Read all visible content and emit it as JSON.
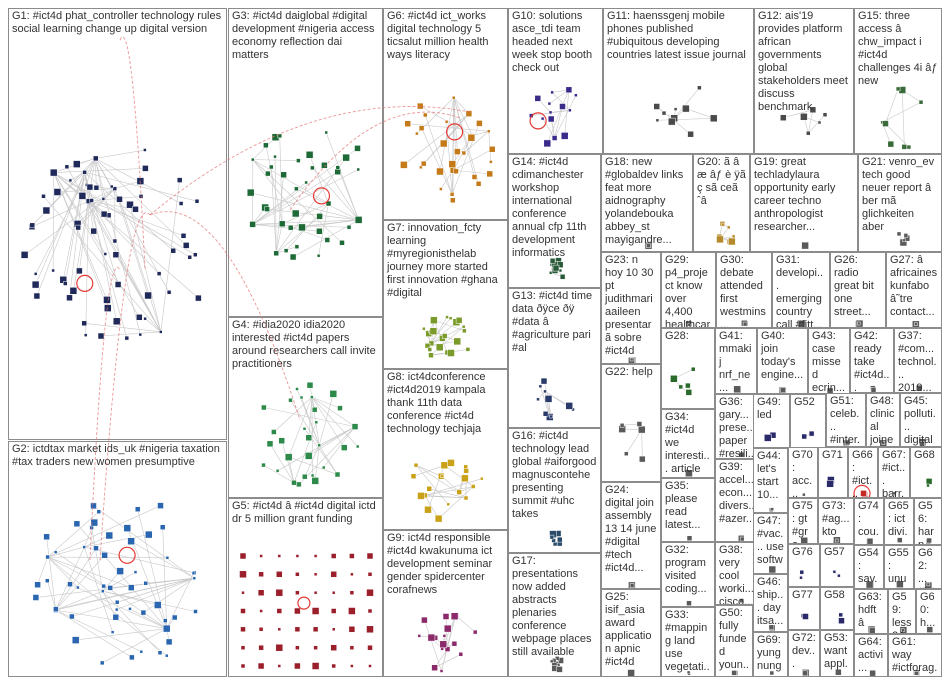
{
  "groups": [
    {
      "id": "G1",
      "label": "G1: #ict4d phat_controller technology rules social learning change up digital version",
      "color": "#1f2a5a"
    },
    {
      "id": "G2",
      "label": "G2: ictdtax market ids_uk #nigeria taxation #tax traders new women presumptive",
      "color": "#2a66b0"
    },
    {
      "id": "G3",
      "label": "G3: #ict4d daiglobal #digital development #nigeria access economy reflection dai matters",
      "color": "#1d6a36"
    },
    {
      "id": "G4",
      "label": "G4: #idia2020 idia2020 interested #ict4d papers around researchers call invite practitioners",
      "color": "#2e8a4a"
    },
    {
      "id": "G5",
      "label": "G5: #ict4d â #ict4d digital ictd dr 5 million grant funding",
      "color": "#9a1f2a"
    },
    {
      "id": "G6",
      "label": "G6: #ict4d ict_works digital technology 5 ticsalut million health ways literacy",
      "color": "#c47a18"
    },
    {
      "id": "G7",
      "label": "G7: innovation_fcty learning #myregionisthelab journey more started first innovation #ghana #digital",
      "color": "#7a9a2a"
    },
    {
      "id": "G8",
      "label": "G8: ict4dconference #ict4d2019 kampala thank 11th data conference #ict4d technology techjaja",
      "color": "#c9a21a"
    },
    {
      "id": "G9",
      "label": "G9: ict4d responsible #ict4d kwakunuma ict development seminar gender spidercenter corafnews",
      "color": "#8a2a6a"
    },
    {
      "id": "G10",
      "label": "G10: solutions asce_tdi team headed next week stop booth check out",
      "color": "#3a2a8a"
    },
    {
      "id": "G11",
      "label": "G11: haenssgenj mobile phones published #ubiquitous developing countries latest issue journal",
      "color": "#4a4a4a"
    },
    {
      "id": "G12",
      "label": "G12: ais'19 provides platform african governments global stakeholders meet discuss benchmark",
      "color": "#4a4a4a"
    },
    {
      "id": "G13",
      "label": "G13: #ict4d time data ðÿcе ðÿ #data â #agriculture pari #al",
      "color": "#2a3a6a"
    },
    {
      "id": "G14",
      "label": "G14: #ict4d cdimanchester workshop international conference annual cfp 11th development informatics",
      "color": "#2a5a3a"
    },
    {
      "id": "G15",
      "label": "G15: three access â chw_impact i #ict4d challenges 4i âƒ new",
      "color": "#3a6a3a"
    },
    {
      "id": "G16",
      "label": "G16: #ict4d technology lead global #aiforgood magnuscontehe presenting summit #uhc takes",
      "color": "#2a4a6a"
    },
    {
      "id": "G17",
      "label": "G17: presentations now added abstracts plenaries conference webpage places still available",
      "color": "#5a5a5a"
    },
    {
      "id": "G18",
      "label": "G18: new #globaldev links feat more aidnography yolandebouka abbey_st mayigandre...",
      "color": "#5a5a5a"
    },
    {
      "id": "G19",
      "label": "G19: great techladylaura opportunity early career techno anthropologist researcher...",
      "color": "#5a5a5a"
    },
    {
      "id": "G20",
      "label": "G20: ã â æ âƒ è ÿã ç sã ceã ˆâ",
      "color": "#b58a2a"
    },
    {
      "id": "G21",
      "label": "G21: venro_ev tech good neuer report â ber mã glichkeiten aber",
      "color": "#5a5a5a"
    },
    {
      "id": "G22",
      "label": "G22: help",
      "color": "#5a5a5a"
    },
    {
      "id": "G23",
      "label": "G23: n hoy 10 30 pt judithmari aaileen presentarã sobre #ict4d",
      "color": "#5a5a5a"
    },
    {
      "id": "G24",
      "label": "G24: digital join assembly 13 14 june #digital #tech #ict4d...",
      "color": "#5a5a5a"
    },
    {
      "id": "G25",
      "label": "G25: isif_asia award application apnic #ict4d",
      "color": "#5a5a5a"
    },
    {
      "id": "G26",
      "label": "G26: radio great bit one street...",
      "color": "#5a5a5a"
    },
    {
      "id": "G27",
      "label": "G27: â africaines kunfabo â˜tre contact...",
      "color": "#5a5a5a"
    },
    {
      "id": "G28",
      "label": "G28:",
      "color": "#2a6a2a"
    },
    {
      "id": "G29",
      "label": "G29: p4_project know over 4,400 healthcar...",
      "color": "#5a5a5a"
    },
    {
      "id": "G30",
      "label": "G30: debate attended first westmins...",
      "color": "#5a5a5a"
    },
    {
      "id": "G31",
      "label": "G31: developi... emerging country call #fitt...",
      "color": "#5a5a5a"
    },
    {
      "id": "G32",
      "label": "G32: program visited coding...",
      "color": "#5a5a5a"
    },
    {
      "id": "G33",
      "label": "G33: #mapping land use vegetati... cover...",
      "color": "#5a5a5a"
    },
    {
      "id": "G34",
      "label": "G34: #ict4d we interesti... article bridge...",
      "color": "#5a5a5a"
    },
    {
      "id": "G35",
      "label": "G35: please read latest...",
      "color": "#5a5a5a"
    },
    {
      "id": "G36",
      "label": "G36: gary... prese... paper #resili...",
      "color": "#5a5a5a"
    },
    {
      "id": "G37",
      "label": "G37: #com... technol... 2019...",
      "color": "#5a5a5a"
    },
    {
      "id": "G38",
      "label": "G38: very cool worki... cisco...",
      "color": "#5a5a5a"
    },
    {
      "id": "G39",
      "label": "G39: accel... econ... divers... #azer...",
      "color": "#5a5a5a"
    },
    {
      "id": "G40",
      "label": "G40: join today's engine...",
      "color": "#5a5a5a"
    },
    {
      "id": "G41",
      "label": "G41: mmakij nrf_ne... well...",
      "color": "#5a5a5a"
    },
    {
      "id": "G42",
      "label": "G42: ready take #ict4d...",
      "color": "#5a5a5a"
    },
    {
      "id": "G43",
      "label": "G43: case missed ecrin...",
      "color": "#5a5a5a"
    },
    {
      "id": "G44",
      "label": "G44: let's start 10...",
      "color": "#5a5a5a"
    },
    {
      "id": "G45",
      "label": "G45: polluti... digital harm...",
      "color": "#5a5a5a"
    },
    {
      "id": "G46",
      "label": "G46: ship... day itsa...",
      "color": "#5a5a5a"
    },
    {
      "id": "G47",
      "label": "G47: #vac... use softw...",
      "color": "#5a5a5a"
    },
    {
      "id": "G48",
      "label": "G48: clinical joined doroth...",
      "color": "#5a5a5a"
    },
    {
      "id": "G49",
      "label": "G49: led",
      "color": "#2a2a6a"
    },
    {
      "id": "G50",
      "label": "G50: fully funded youn...",
      "color": "#5a5a5a"
    },
    {
      "id": "G51",
      "label": "G51: celeb... #inter... forget...",
      "color": "#5a5a5a"
    },
    {
      "id": "G52",
      "label": "G52",
      "color": "#2a2a6a"
    },
    {
      "id": "G53",
      "label": "G53: want appl...",
      "color": "#5a5a5a"
    },
    {
      "id": "G54",
      "label": "G54: sav... sign...",
      "color": "#5a5a5a"
    },
    {
      "id": "G55",
      "label": "G55: unu cs...",
      "color": "#5a5a5a"
    },
    {
      "id": "G56",
      "label": "G56: harp... hill...",
      "color": "#5a5a5a"
    },
    {
      "id": "G57",
      "label": "G57",
      "color": "#2a2a6a"
    },
    {
      "id": "G58",
      "label": "G58",
      "color": "#2a2a6a"
    },
    {
      "id": "G59",
      "label": "G59: less 24",
      "color": "#5a5a5a"
    },
    {
      "id": "G60",
      "label": "G60: h...",
      "color": "#5a5a5a"
    },
    {
      "id": "G61",
      "label": "G61: way #ictforag...",
      "color": "#5a5a5a"
    },
    {
      "id": "G62",
      "label": "G62: ... #ict...",
      "color": "#5a5a5a"
    },
    {
      "id": "G63",
      "label": "G63: hdft â",
      "color": "#5a5a5a"
    },
    {
      "id": "G64",
      "label": "G64: activi... book...",
      "color": "#5a5a5a"
    },
    {
      "id": "G65",
      "label": "G65: ict divi...",
      "color": "#5a5a5a"
    },
    {
      "id": "G66",
      "label": "G66: #ict... #inn...",
      "color": "#c62828"
    },
    {
      "id": "G67",
      "label": "G67: #ict... barr...",
      "color": "#5a5a5a"
    },
    {
      "id": "G68",
      "label": "G68",
      "color": "#2a6a2a"
    },
    {
      "id": "G69",
      "label": "G69: yung nung...",
      "color": "#5a5a5a"
    },
    {
      "id": "G70",
      "label": "G70: acc... right...",
      "color": "#5a5a5a"
    },
    {
      "id": "G71",
      "label": "G71",
      "color": "#2a2a6a"
    },
    {
      "id": "G72",
      "label": "G72: dev...",
      "color": "#5a5a5a"
    },
    {
      "id": "G73",
      "label": "G73: #ag... kto",
      "color": "#5a5a5a"
    },
    {
      "id": "G74",
      "label": "G74: cou...",
      "color": "#5a5a5a"
    },
    {
      "id": "G75",
      "label": "G75: gt #gro...",
      "color": "#5a5a5a"
    },
    {
      "id": "G76",
      "label": "G76",
      "color": "#2a2a6a"
    },
    {
      "id": "G77",
      "label": "G77",
      "color": "#2a2a6a"
    }
  ]
}
